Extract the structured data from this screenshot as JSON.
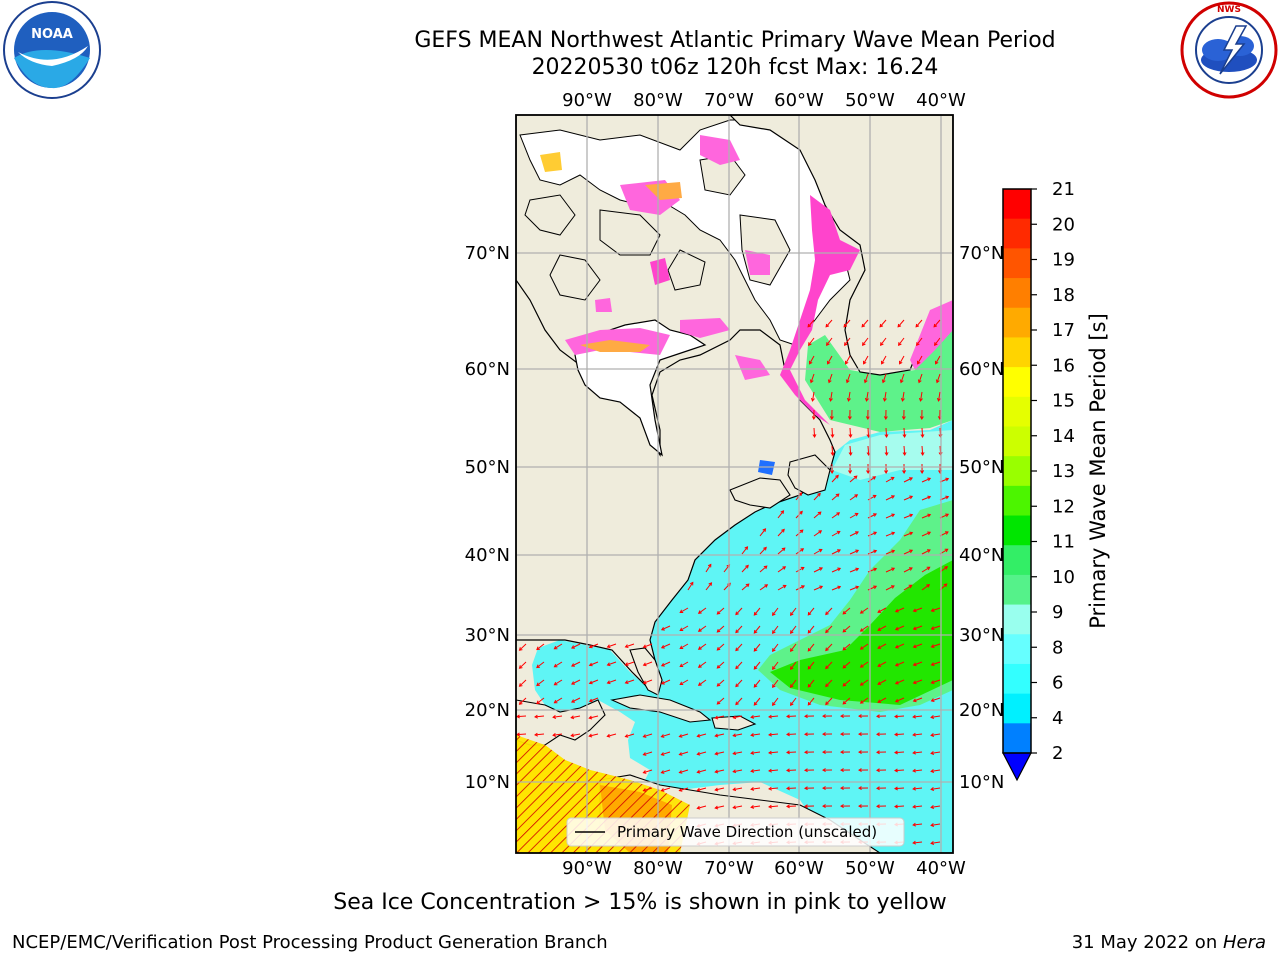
{
  "title": {
    "line1": "GEFS MEAN Northwest Atlantic Primary Wave Mean Period",
    "line2": "20220530 t06z 120h fcst   Max: 16.24"
  },
  "logos": {
    "left": "NOAA",
    "left_ring_text": "NATIONAL OCEANIC AND ATMOSPHERIC ADMINISTRATION · U.S. DEPARTMENT OF COMMERCE",
    "right_ring_text": "NATIONAL WEATHER SERVICE"
  },
  "map": {
    "lon_labels": [
      "90°W",
      "80°W",
      "70°W",
      "60°W",
      "50°W",
      "40°W"
    ],
    "lat_labels": [
      "70°N",
      "60°N",
      "50°N",
      "40°N",
      "30°N",
      "20°N",
      "10°N"
    ],
    "legend_label": "Primary Wave Direction (unscaled)",
    "arrow_color": "#ff0000",
    "land_color": "#efecdc"
  },
  "colorbar": {
    "title": "Primary Wave Mean Period [s]",
    "ticks": [
      "21",
      "20",
      "19",
      "18",
      "17",
      "16",
      "15",
      "14",
      "13",
      "12",
      "11",
      "10",
      "9",
      "8",
      "6",
      "4",
      "2"
    ],
    "colors": [
      "#ff0000",
      "#ff2a00",
      "#ff5500",
      "#ff7f00",
      "#ffaa00",
      "#ffd400",
      "#ffff00",
      "#e5ff00",
      "#ccff00",
      "#99ff00",
      "#4cf500",
      "#00e600",
      "#33ee66",
      "#55f28a",
      "#99ffee",
      "#66ffff",
      "#33ffff",
      "#00f0ff",
      "#0080ff"
    ],
    "under_color": "#0000ff"
  },
  "caption": "Sea Ice Concentration > 15% is shown in pink to yellow",
  "footer": {
    "left": "NCEP/EMC/Verification Post Processing Product Generation Branch",
    "right_prefix": "31 May 2022 on ",
    "right_host": "Hera"
  }
}
